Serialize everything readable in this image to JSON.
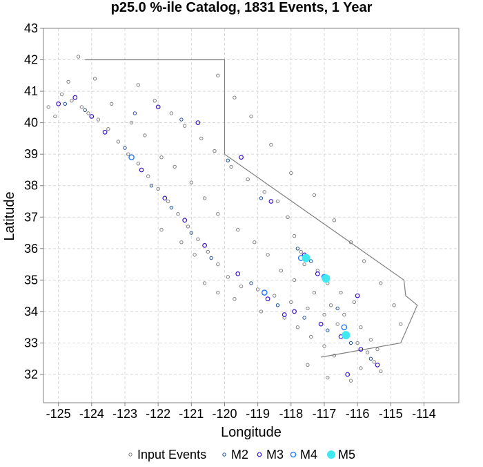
{
  "chart_data": {
    "type": "scatter",
    "title": "p25.0 %-ile Catalog, 1831 Events, 1 Year",
    "xlabel": "Longitude",
    "ylabel": "Latitude",
    "xlim": [
      -125.45,
      -112.95
    ],
    "ylim": [
      31.1,
      43.0
    ],
    "xticks": [
      -125,
      -124,
      -123,
      -122,
      -121,
      -120,
      -119,
      -118,
      -117,
      -116,
      -115,
      -114
    ],
    "yticks": [
      32,
      33,
      34,
      35,
      36,
      37,
      38,
      39,
      40,
      41,
      42,
      43
    ],
    "grid": true,
    "legend_position": "bottom",
    "colors": {
      "input": "#808080",
      "m2": "#1f4e96",
      "m3": "#3a14c8",
      "m4": "#1e78ff",
      "m5": "#40e8f0",
      "boundary": "#808080",
      "grid": "#d8d8d8"
    },
    "boundary": [
      [
        -124.2,
        42.0
      ],
      [
        -120.0,
        42.0
      ],
      [
        -120.0,
        39.0
      ],
      [
        -114.6,
        35.0
      ],
      [
        -114.55,
        34.5
      ],
      [
        -114.2,
        34.2
      ],
      [
        -114.7,
        33.0
      ],
      [
        -117.1,
        32.55
      ]
    ],
    "series": [
      {
        "name": "Input Events",
        "values": [
          [
            -124.9,
            40.9
          ],
          [
            -124.6,
            40.7
          ],
          [
            -124.3,
            40.5
          ],
          [
            -124.1,
            40.3
          ],
          [
            -123.8,
            40.1
          ],
          [
            -123.5,
            39.8
          ],
          [
            -123.2,
            39.4
          ],
          [
            -122.9,
            39.0
          ],
          [
            -122.6,
            38.7
          ],
          [
            -122.3,
            38.3
          ],
          [
            -122.0,
            37.9
          ],
          [
            -121.7,
            37.5
          ],
          [
            -121.4,
            37.1
          ],
          [
            -121.1,
            36.7
          ],
          [
            -120.8,
            36.3
          ],
          [
            -120.5,
            35.9
          ],
          [
            -120.2,
            35.5
          ],
          [
            -119.9,
            35.1
          ],
          [
            -119.5,
            34.8
          ],
          [
            -119.0,
            34.7
          ],
          [
            -118.5,
            34.5
          ],
          [
            -118.0,
            34.3
          ],
          [
            -117.5,
            34.1
          ],
          [
            -117.0,
            33.9
          ],
          [
            -116.6,
            33.6
          ],
          [
            -116.3,
            33.3
          ],
          [
            -116.0,
            33.0
          ],
          [
            -115.7,
            32.7
          ],
          [
            -115.5,
            32.4
          ],
          [
            -115.3,
            32.1
          ],
          [
            -122.6,
            41.2
          ],
          [
            -122.1,
            40.7
          ],
          [
            -121.6,
            40.3
          ],
          [
            -121.2,
            39.9
          ],
          [
            -120.7,
            39.5
          ],
          [
            -120.3,
            39.1
          ],
          [
            -119.8,
            38.6
          ],
          [
            -119.3,
            38.2
          ],
          [
            -118.8,
            37.8
          ],
          [
            -118.4,
            37.5
          ],
          [
            -118.1,
            37.0
          ],
          [
            -117.9,
            36.4
          ],
          [
            -117.7,
            35.9
          ],
          [
            -117.6,
            35.5
          ],
          [
            -117.2,
            35.3
          ],
          [
            -116.9,
            34.9
          ],
          [
            -116.5,
            34.6
          ],
          [
            -116.1,
            34.3
          ],
          [
            -120.6,
            34.9
          ],
          [
            -120.2,
            34.6
          ],
          [
            -119.7,
            34.4
          ],
          [
            -118.9,
            34.0
          ],
          [
            -118.2,
            33.8
          ],
          [
            -117.8,
            33.5
          ],
          [
            -117.4,
            33.2
          ],
          [
            -117.0,
            32.9
          ],
          [
            -116.7,
            32.6
          ],
          [
            -121.9,
            36.6
          ],
          [
            -121.3,
            36.2
          ],
          [
            -120.9,
            35.8
          ],
          [
            -123.9,
            41.4
          ],
          [
            -123.4,
            40.6
          ],
          [
            -122.8,
            40.0
          ],
          [
            -122.4,
            39.6
          ],
          [
            -121.9,
            38.9
          ],
          [
            -121.5,
            38.6
          ],
          [
            -121.0,
            38.1
          ],
          [
            -120.6,
            37.6
          ],
          [
            -120.2,
            37.1
          ],
          [
            -119.6,
            36.6
          ],
          [
            -119.1,
            36.2
          ],
          [
            -118.7,
            35.8
          ],
          [
            -118.3,
            35.3
          ],
          [
            -117.9,
            35.0
          ],
          [
            -117.3,
            34.6
          ],
          [
            -116.8,
            34.2
          ],
          [
            -116.4,
            33.9
          ],
          [
            -115.9,
            33.5
          ],
          [
            -115.6,
            33.1
          ],
          [
            -115.4,
            32.8
          ],
          [
            -120.2,
            41.5
          ],
          [
            -119.7,
            40.8
          ],
          [
            -119.2,
            40.2
          ],
          [
            -118.6,
            39.3
          ],
          [
            -118.0,
            38.4
          ],
          [
            -117.3,
            37.7
          ],
          [
            -116.7,
            36.9
          ],
          [
            -116.2,
            36.2
          ],
          [
            -115.8,
            35.6
          ],
          [
            -115.3,
            34.9
          ],
          [
            -114.9,
            34.2
          ],
          [
            -114.7,
            33.6
          ],
          [
            -117.5,
            32.3
          ],
          [
            -116.9,
            31.9
          ],
          [
            -116.2,
            31.8
          ],
          [
            -115.9,
            32.2
          ],
          [
            -125.3,
            40.5
          ],
          [
            -125.1,
            40.2
          ],
          [
            -124.7,
            41.3
          ],
          [
            -124.4,
            42.1
          ]
        ]
      },
      {
        "name": "M2",
        "values": [
          [
            -124.8,
            40.6
          ],
          [
            -124.2,
            40.4
          ],
          [
            -123.0,
            39.2
          ],
          [
            -122.2,
            38.0
          ],
          [
            -121.6,
            37.3
          ],
          [
            -121.0,
            36.5
          ],
          [
            -120.4,
            35.7
          ],
          [
            -119.2,
            34.9
          ],
          [
            -118.4,
            34.2
          ],
          [
            -117.6,
            33.8
          ],
          [
            -116.9,
            33.4
          ],
          [
            -116.2,
            33.0
          ],
          [
            -115.6,
            32.5
          ],
          [
            -117.8,
            36.0
          ],
          [
            -117.4,
            35.6
          ],
          [
            -116.6,
            34.1
          ],
          [
            -118.9,
            37.6
          ],
          [
            -119.9,
            38.8
          ],
          [
            -121.3,
            40.1
          ],
          [
            -122.7,
            40.3
          ]
        ]
      },
      {
        "name": "M3",
        "values": [
          [
            -124.5,
            40.8
          ],
          [
            -123.6,
            39.7
          ],
          [
            -122.5,
            38.5
          ],
          [
            -121.8,
            37.6
          ],
          [
            -121.2,
            36.9
          ],
          [
            -120.6,
            36.1
          ],
          [
            -119.6,
            35.2
          ],
          [
            -118.7,
            34.4
          ],
          [
            -117.9,
            34.0
          ],
          [
            -117.1,
            33.6
          ],
          [
            -116.5,
            33.2
          ],
          [
            -115.9,
            32.8
          ],
          [
            -117.6,
            35.8
          ],
          [
            -117.2,
            35.2
          ],
          [
            -116.0,
            34.5
          ],
          [
            -118.6,
            37.5
          ],
          [
            -119.5,
            38.9
          ],
          [
            -120.8,
            40.0
          ],
          [
            -122.0,
            40.5
          ],
          [
            -125.0,
            40.6
          ],
          [
            -124.0,
            40.2
          ],
          [
            -115.4,
            32.3
          ],
          [
            -116.3,
            32.0
          ],
          [
            -118.2,
            33.9
          ]
        ]
      },
      {
        "name": "M4",
        "values": [
          [
            -122.8,
            38.9
          ],
          [
            -117.7,
            35.7
          ],
          [
            -117.0,
            35.1
          ],
          [
            -116.4,
            33.5
          ],
          [
            -118.8,
            34.6
          ]
        ]
      },
      {
        "name": "M5",
        "values": [
          [
            -117.55,
            35.7
          ],
          [
            -116.95,
            35.05
          ],
          [
            -116.35,
            33.25
          ]
        ]
      }
    ]
  }
}
